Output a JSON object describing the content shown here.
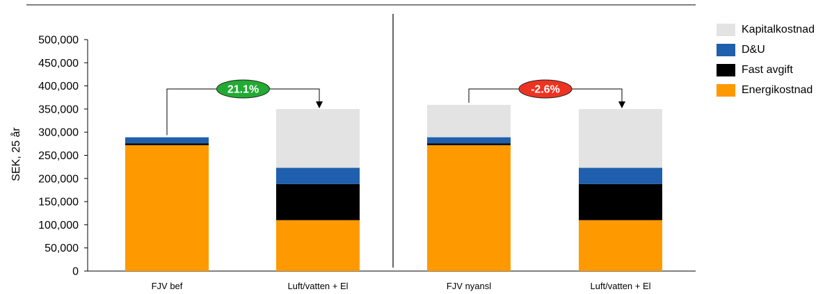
{
  "chart_data": {
    "type": "bar",
    "stacked": true,
    "ylabel": "SEK, 25 år",
    "ylim": [
      0,
      500000
    ],
    "yticks": [
      "0",
      "50,000",
      "100,000",
      "150,000",
      "200,000",
      "250,000",
      "300,000",
      "350,000",
      "400,000",
      "450,000",
      "500,000"
    ],
    "categories": [
      "FJV bef",
      "Luft/vatten + El",
      "FJV nyansl",
      "Luft/vatten + El"
    ],
    "series": [
      {
        "name": "Energikostnad",
        "color": "#ff9900",
        "values": [
          272000,
          110000,
          272000,
          110000
        ]
      },
      {
        "name": "Fast avgift",
        "color": "#000000",
        "values": [
          4000,
          78000,
          4000,
          78000
        ]
      },
      {
        "name": "D&U",
        "color": "#1f5fad",
        "values": [
          13000,
          35000,
          13000,
          35000
        ]
      },
      {
        "name": "Kapitalkostnad",
        "color": "#e3e3e3",
        "values": [
          0,
          127000,
          70000,
          127000
        ]
      }
    ],
    "legend_order": [
      "Kapitalkostnad",
      "D&U",
      "Fast avgift",
      "Energikostnad"
    ],
    "legend_placement": "right",
    "grid": false,
    "annotations": [
      {
        "text": "21.1%",
        "from_category": 0,
        "to_category": 1,
        "color": "#22aa33"
      },
      {
        "text": "-2.6%",
        "from_category": 2,
        "to_category": 3,
        "color": "#ee3322"
      }
    ]
  }
}
